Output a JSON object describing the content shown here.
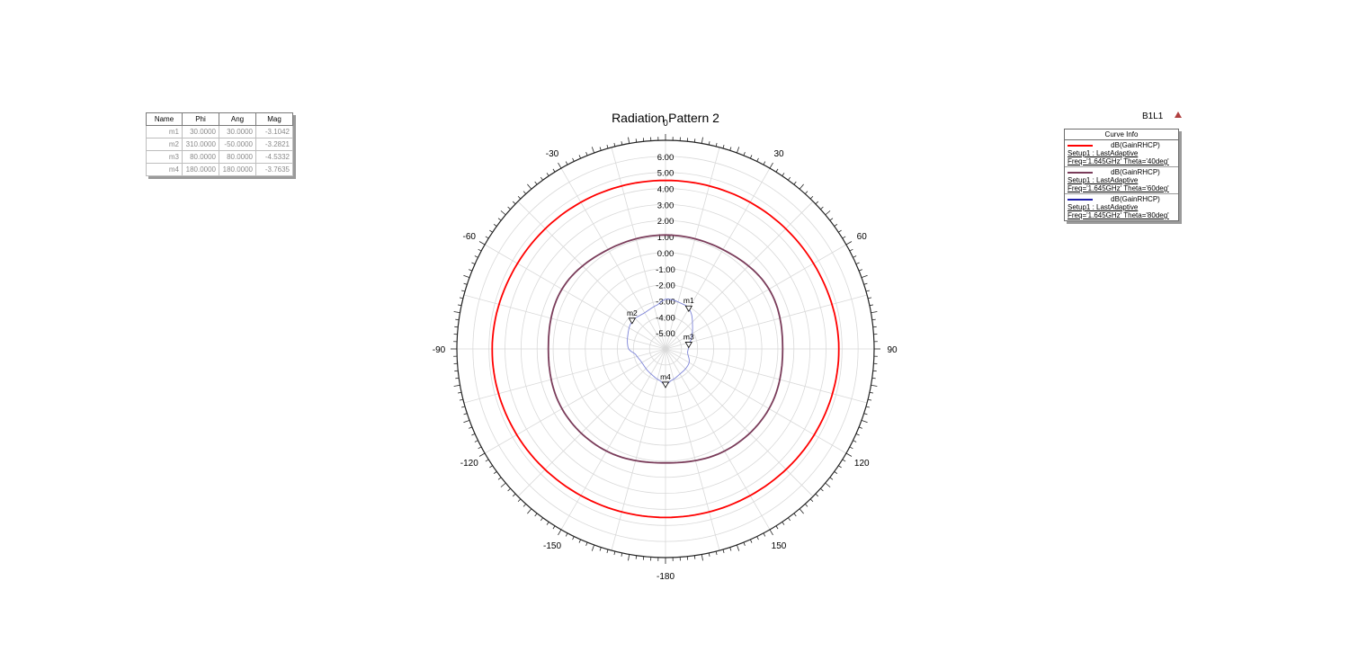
{
  "chart_data": {
    "type": "polar",
    "title": "Radiation Pattern 2",
    "radial_ticks": [
      "6.00",
      "5.00",
      "4.00",
      "3.00",
      "2.00",
      "1.00",
      "0.00",
      "-1.00",
      "-2.00",
      "-3.00",
      "-4.00",
      "-5.00"
    ],
    "radial_range": [
      -6,
      7
    ],
    "angle_ticks": [
      {
        "angle": 0,
        "label": "0"
      },
      {
        "angle": 30,
        "label": "30"
      },
      {
        "angle": 60,
        "label": "60"
      },
      {
        "angle": 90,
        "label": "90"
      },
      {
        "angle": 120,
        "label": "120"
      },
      {
        "angle": 150,
        "label": "150"
      },
      {
        "angle": 180,
        "label": "-180"
      },
      {
        "angle": -150,
        "label": "-150"
      },
      {
        "angle": -120,
        "label": "-120"
      },
      {
        "angle": -90,
        "label": "-90"
      },
      {
        "angle": -60,
        "label": "-60"
      },
      {
        "angle": -30,
        "label": "-30"
      }
    ],
    "series": [
      {
        "name": "dB(GainRHCP)",
        "color": "#ff0000",
        "angles": [
          0,
          30,
          60,
          90,
          120,
          150,
          180,
          210,
          240,
          270,
          300,
          330
        ],
        "values": [
          4.5,
          4.55,
          4.65,
          4.8,
          4.7,
          4.55,
          4.5,
          4.55,
          4.7,
          4.8,
          4.65,
          4.55
        ]
      },
      {
        "name": "dB(GainRHCP)",
        "color": "#7a3c5a",
        "angles": [
          0,
          30,
          60,
          90,
          120,
          150,
          180,
          210,
          240,
          270,
          300,
          330
        ],
        "values": [
          1.1,
          1.15,
          1.45,
          1.3,
          1.45,
          1.35,
          1.1,
          1.35,
          1.45,
          1.3,
          1.45,
          1.15
        ]
      },
      {
        "name": "dB(GainRHCP)",
        "color": "#7d84d8",
        "angles": [
          0,
          20,
          30,
          50,
          70,
          80,
          100,
          120,
          150,
          170,
          180,
          190,
          210,
          240,
          260,
          270,
          290,
          310,
          330,
          350
        ],
        "values": [
          -2.9,
          -3.0,
          -3.1,
          -3.8,
          -4.3,
          -4.5,
          -4.6,
          -4.3,
          -4.2,
          -4.0,
          -3.8,
          -4.0,
          -4.2,
          -4.3,
          -4.1,
          -3.7,
          -3.5,
          -3.3,
          -3.4,
          -3.2
        ]
      }
    ],
    "markers": [
      {
        "name": "m1",
        "angle": 30,
        "value": -3.1042
      },
      {
        "name": "m2",
        "angle": 310,
        "value": -3.2821
      },
      {
        "name": "m3",
        "angle": 80,
        "value": -4.5332
      },
      {
        "name": "m4",
        "angle": 180,
        "value": -3.7635
      }
    ]
  },
  "marker_table": {
    "headers": [
      "Name",
      "Phi",
      "Ang",
      "Mag"
    ],
    "rows": [
      [
        "m1",
        "30.0000",
        "30.0000",
        "-3.1042"
      ],
      [
        "m2",
        "310.0000",
        "-50.0000",
        "-3.2821"
      ],
      [
        "m3",
        "80.0000",
        "80.0000",
        "-4.5332"
      ],
      [
        "m4",
        "180.0000",
        "180.0000",
        "-3.7635"
      ]
    ]
  },
  "legend": {
    "header": "Curve Info",
    "entries": [
      {
        "name": "dB(GainRHCP)",
        "color": "#ff0000",
        "line1": "Setup1 : LastAdaptive",
        "line2": "Freq='1.645GHz' Theta='40deg'"
      },
      {
        "name": "dB(GainRHCP)",
        "color": "#7a3c5a",
        "line1": "Setup1 : LastAdaptive",
        "line2": "Freq='1.645GHz' Theta='60deg'"
      },
      {
        "name": "dB(GainRHCP)",
        "color": "#1f1fa8",
        "line1": "Setup1 : LastAdaptive",
        "line2": "Freq='1.645GHz' Theta='80deg'"
      }
    ]
  },
  "plot_name": "B1L1"
}
